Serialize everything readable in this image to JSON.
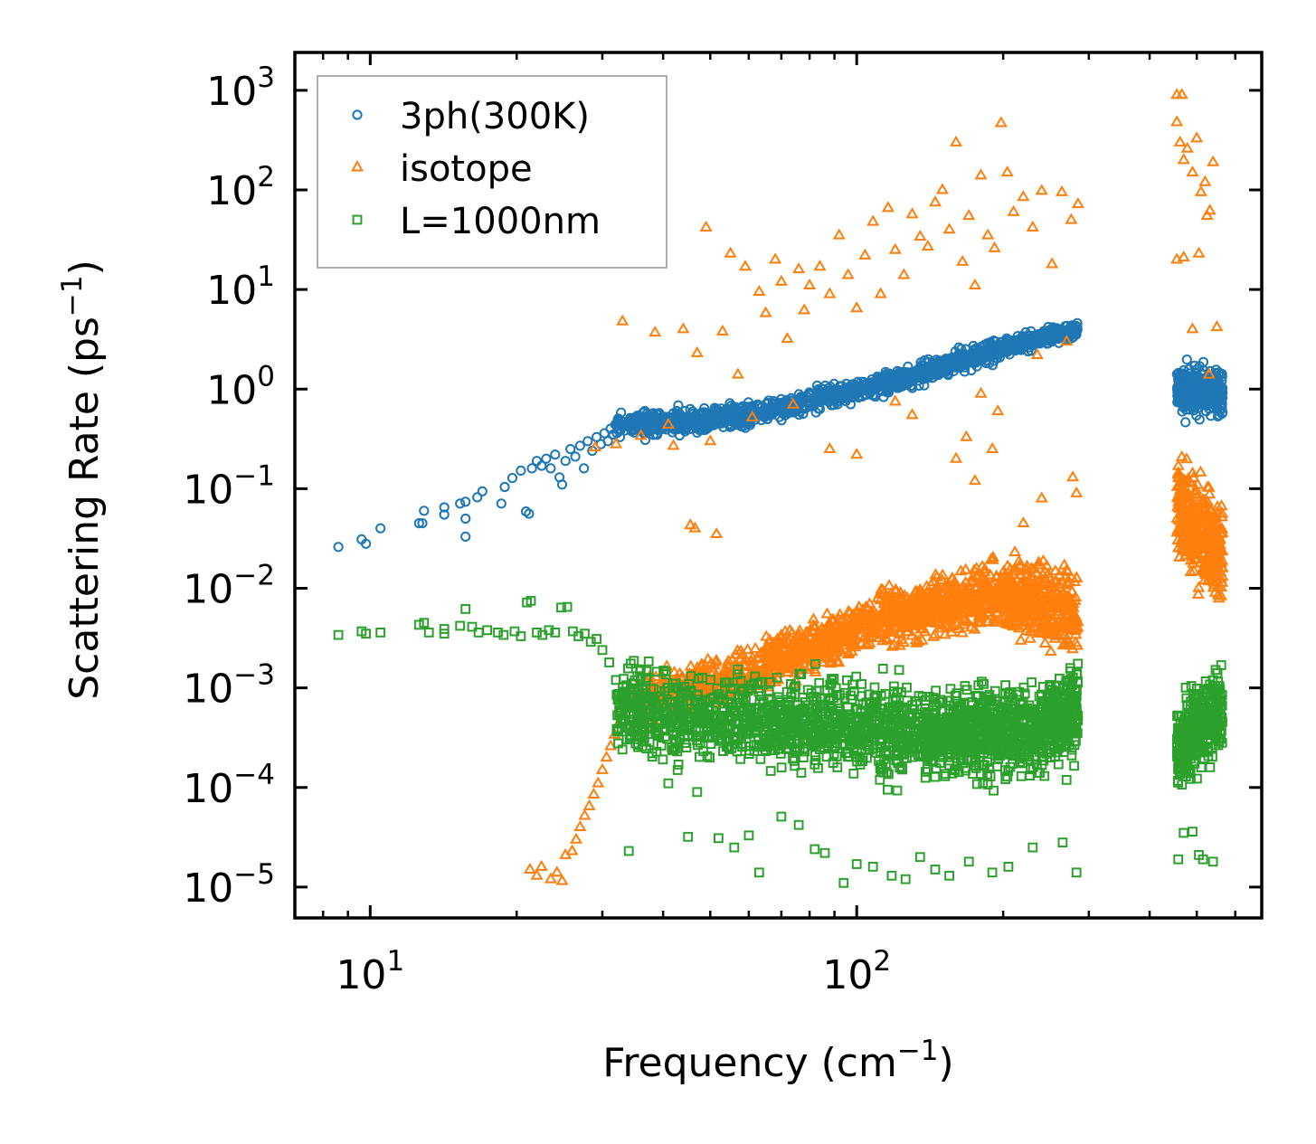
{
  "chart_data": {
    "type": "scatter",
    "title": "",
    "xlabel": "Frequency (cm^-1)",
    "xlabel_base": "Frequency (cm",
    "xlabel_sup": "−1",
    "xlabel_close": ")",
    "ylabel": "Scattering Rate (ps^-1)",
    "ylabel_base": "Scattering Rate (ps",
    "ylabel_sup": "−1",
    "ylabel_close": ")",
    "xscale": "log",
    "yscale": "log",
    "xlim": [
      7.0,
      680
    ],
    "ylim": [
      4.9e-06,
      2400
    ],
    "grid": false,
    "legend_position": "top-left",
    "x_ticks": [
      {
        "value": 10,
        "base": "10",
        "exp": "1"
      },
      {
        "value": 100,
        "base": "10",
        "exp": "2"
      }
    ],
    "y_ticks": [
      {
        "value": 1000,
        "base": "10",
        "exp": "3"
      },
      {
        "value": 100,
        "base": "10",
        "exp": "2"
      },
      {
        "value": 10,
        "base": "10",
        "exp": "1"
      },
      {
        "value": 1,
        "base": "10",
        "exp": "0"
      },
      {
        "value": 0.1,
        "base": "10",
        "exp": "−1"
      },
      {
        "value": 0.01,
        "base": "10",
        "exp": "−2"
      },
      {
        "value": 0.001,
        "base": "10",
        "exp": "−3"
      },
      {
        "value": 0.0001,
        "base": "10",
        "exp": "−4"
      },
      {
        "value": 1e-05,
        "base": "10",
        "exp": "−5"
      }
    ],
    "x_minor_ticks": [
      8,
      9,
      20,
      30,
      40,
      50,
      60,
      70,
      80,
      90,
      200,
      300,
      400,
      500,
      600
    ],
    "series": [
      {
        "name": "3ph(300K)",
        "marker": "circle",
        "color": "#1f77b4",
        "points": [
          [
            8.6,
            0.026
          ],
          [
            9.6,
            0.031
          ],
          [
            9.8,
            0.028
          ],
          [
            10.5,
            0.04
          ],
          [
            12.6,
            0.045
          ],
          [
            12.8,
            0.045
          ],
          [
            12.9,
            0.06
          ],
          [
            14.2,
            0.055
          ],
          [
            14.2,
            0.065
          ],
          [
            15.3,
            0.071
          ],
          [
            15.7,
            0.074
          ],
          [
            15.7,
            0.05
          ],
          [
            15.7,
            0.033
          ],
          [
            16.6,
            0.082
          ],
          [
            17.0,
            0.094
          ],
          [
            18.6,
            0.071
          ],
          [
            18.9,
            0.104
          ],
          [
            19.6,
            0.128
          ],
          [
            20.4,
            0.152
          ],
          [
            20.9,
            0.059
          ],
          [
            21.2,
            0.056
          ],
          [
            21.5,
            0.16
          ],
          [
            22.0,
            0.19
          ],
          [
            22.5,
            0.17
          ],
          [
            23.0,
            0.2
          ],
          [
            23.5,
            0.16
          ],
          [
            24.0,
            0.22
          ],
          [
            24.5,
            0.13
          ],
          [
            24.8,
            0.11
          ],
          [
            25.2,
            0.19
          ],
          [
            25.8,
            0.25
          ],
          [
            26.4,
            0.21
          ],
          [
            27.0,
            0.27
          ],
          [
            27.5,
            0.16
          ],
          [
            28.0,
            0.3
          ],
          [
            28.6,
            0.24
          ],
          [
            29.2,
            0.33
          ],
          [
            29.8,
            0.28
          ],
          [
            30.3,
            0.36
          ],
          [
            30.8,
            0.3
          ],
          [
            31.2,
            0.4
          ],
          [
            31.6,
            0.35
          ],
          [
            31.9,
            0.44
          ],
          [
            32.3,
            0.39
          ]
        ],
        "bands": [
          {
            "x": [
              32,
              60
            ],
            "y": [
              0.42,
              0.55
            ],
            "spread_dex": 0.12,
            "count": 420
          },
          {
            "x": [
              60,
              120
            ],
            "y": [
              0.55,
              1.2
            ],
            "spread_dex": 0.1,
            "count": 420
          },
          {
            "x": [
              120,
              200
            ],
            "y": [
              1.2,
              2.6
            ],
            "spread_dex": 0.1,
            "count": 380
          },
          {
            "x": [
              200,
              285
            ],
            "y": [
              2.6,
              4.0
            ],
            "spread_dex": 0.07,
            "count": 300
          },
          {
            "x": [
              455,
              565
            ],
            "y": [
              1.0,
              0.9
            ],
            "spread_dex": 0.22,
            "count": 320
          }
        ]
      },
      {
        "name": "isotope",
        "marker": "triangle",
        "color": "#ff7f0e",
        "points": [
          [
            21.3,
            1.5e-05
          ],
          [
            22.0,
            1.3e-05
          ],
          [
            22.5,
            1.6e-05
          ],
          [
            23.5,
            1.2e-05
          ],
          [
            24.2,
            1.4e-05
          ],
          [
            24.8,
            1.15e-05
          ],
          [
            25.2,
            2.1e-05
          ],
          [
            26.0,
            2.3e-05
          ],
          [
            26.5,
            3e-05
          ],
          [
            27.0,
            4e-05
          ],
          [
            27.6,
            5.2e-05
          ],
          [
            28.2,
            6.5e-05
          ],
          [
            28.8,
            8.5e-05
          ],
          [
            29.4,
            0.00011
          ],
          [
            30.0,
            0.00015
          ],
          [
            30.6,
            0.0002
          ],
          [
            31.2,
            0.00026
          ],
          [
            31.8,
            0.00034
          ],
          [
            32.4,
            0.00044
          ],
          [
            33.0,
            0.00056
          ],
          [
            33.5,
            0.00075
          ],
          [
            34.0,
            0.001
          ],
          [
            29.0,
            0.26
          ],
          [
            32.0,
            0.28
          ],
          [
            33.0,
            4.8
          ],
          [
            36.0,
            0.34
          ],
          [
            38.5,
            3.7
          ],
          [
            41.0,
            0.44
          ],
          [
            42.0,
            0.27
          ],
          [
            44.0,
            4.0
          ],
          [
            45.5,
            0.043
          ],
          [
            46.5,
            0.04
          ],
          [
            47.0,
            2.3
          ],
          [
            49.0,
            42
          ],
          [
            50.0,
            0.3
          ],
          [
            51.5,
            0.035
          ],
          [
            53.0,
            3.8
          ],
          [
            55.0,
            23
          ],
          [
            57.0,
            1.4
          ],
          [
            59.0,
            17
          ],
          [
            61.0,
            0.52
          ],
          [
            63.0,
            9.5
          ],
          [
            65.0,
            5.8
          ],
          [
            68.0,
            20
          ],
          [
            70.0,
            12
          ],
          [
            72.0,
            3.2
          ],
          [
            74.0,
            0.7
          ],
          [
            76.0,
            16
          ],
          [
            78.0,
            6.2
          ],
          [
            80.0,
            11
          ],
          [
            84.0,
            17
          ],
          [
            88.0,
            9
          ],
          [
            92.0,
            35
          ],
          [
            96.0,
            14
          ],
          [
            100.0,
            6.5
          ],
          [
            104.0,
            22
          ],
          [
            108.0,
            48
          ],
          [
            112.0,
            9
          ],
          [
            116.0,
            66
          ],
          [
            120.0,
            25
          ],
          [
            125.0,
            14
          ],
          [
            130.0,
            57
          ],
          [
            135.0,
            34
          ],
          [
            140.0,
            27
          ],
          [
            145.0,
            75
          ],
          [
            150.0,
            100
          ],
          [
            155.0,
            40
          ],
          [
            160.0,
            300
          ],
          [
            165.0,
            19
          ],
          [
            170.0,
            55
          ],
          [
            175.0,
            11
          ],
          [
            180.0,
            140
          ],
          [
            186.0,
            35
          ],
          [
            192.0,
            26
          ],
          [
            198.0,
            470
          ],
          [
            204.0,
            150
          ],
          [
            210.0,
            60
          ],
          [
            220.0,
            85
          ],
          [
            230.0,
            42
          ],
          [
            240.0,
            98
          ],
          [
            252.0,
            18
          ],
          [
            264.0,
            95
          ],
          [
            276.0,
            50
          ],
          [
            285.0,
            72
          ],
          [
            120.0,
            0.75
          ],
          [
            130.0,
            0.55
          ],
          [
            180.0,
            0.9
          ],
          [
            195.0,
            0.6
          ],
          [
            235.0,
            2.2
          ],
          [
            270.0,
            3.0
          ],
          [
            88.0,
            0.25
          ],
          [
            100.0,
            0.22
          ],
          [
            160.0,
            0.2
          ],
          [
            175.0,
            0.12
          ],
          [
            168.0,
            0.33
          ],
          [
            190.0,
            0.25
          ],
          [
            220.0,
            0.045
          ],
          [
            240.0,
            0.08
          ],
          [
            278.0,
            0.13
          ],
          [
            283.0,
            0.09
          ],
          [
            455.0,
            900
          ],
          [
            466.0,
            900
          ],
          [
            455.0,
            480
          ],
          [
            462.0,
            300
          ],
          [
            470.0,
            200
          ],
          [
            478.0,
            260
          ],
          [
            490.0,
            150
          ],
          [
            500.0,
            330
          ],
          [
            510.0,
            95
          ],
          [
            520.0,
            120
          ],
          [
            532.0,
            62
          ],
          [
            540.0,
            190
          ],
          [
            455.0,
            20
          ],
          [
            470.0,
            21
          ],
          [
            505.0,
            23
          ],
          [
            525.0,
            55
          ],
          [
            550.0,
            4.2
          ],
          [
            490.0,
            4.0
          ],
          [
            530.0,
            1.4
          ]
        ],
        "bands": [
          {
            "x": [
              34,
              65
            ],
            "y": [
              0.0007,
              0.0016
            ],
            "spread_dex": 0.22,
            "count": 300
          },
          {
            "x": [
              65,
              110
            ],
            "y": [
              0.0018,
              0.0045
            ],
            "spread_dex": 0.22,
            "count": 380
          },
          {
            "x": [
              110,
              200
            ],
            "y": [
              0.005,
              0.009
            ],
            "spread_dex": 0.28,
            "count": 520
          },
          {
            "x": [
              200,
              285
            ],
            "y": [
              0.008,
              0.006
            ],
            "spread_dex": 0.35,
            "count": 420
          },
          {
            "x": [
              455,
              565
            ],
            "y": [
              0.07,
              0.02
            ],
            "spread_dex": 0.45,
            "count": 380
          }
        ]
      },
      {
        "name": "L=1000nm",
        "marker": "square",
        "color": "#2ca02c",
        "points": [
          [
            8.6,
            0.0034
          ],
          [
            9.6,
            0.0037
          ],
          [
            9.8,
            0.0035
          ],
          [
            10.5,
            0.0036
          ],
          [
            12.6,
            0.0043
          ],
          [
            12.9,
            0.0045
          ],
          [
            13.2,
            0.0036
          ],
          [
            14.2,
            0.0039
          ],
          [
            14.2,
            0.0035
          ],
          [
            15.3,
            0.0042
          ],
          [
            15.7,
            0.0062
          ],
          [
            16.2,
            0.0041
          ],
          [
            16.7,
            0.0036
          ],
          [
            17.4,
            0.0038
          ],
          [
            18.3,
            0.0036
          ],
          [
            18.8,
            0.0034
          ],
          [
            19.8,
            0.0037
          ],
          [
            20.4,
            0.0033
          ],
          [
            21.0,
            0.0072
          ],
          [
            21.4,
            0.0075
          ],
          [
            22.0,
            0.0036
          ],
          [
            22.6,
            0.0034
          ],
          [
            23.3,
            0.0038
          ],
          [
            24.0,
            0.0036
          ],
          [
            24.7,
            0.0064
          ],
          [
            25.4,
            0.0065
          ],
          [
            26.1,
            0.0037
          ],
          [
            26.8,
            0.0033
          ],
          [
            27.6,
            0.0035
          ],
          [
            28.4,
            0.0029
          ],
          [
            29.2,
            0.0031
          ],
          [
            30.0,
            0.0024
          ],
          [
            31.0,
            0.0018
          ],
          [
            32.0,
            0.0012
          ],
          [
            34.0,
            2.3e-05
          ],
          [
            38.0,
            0.00022
          ],
          [
            41.0,
            0.00011
          ],
          [
            43.0,
            0.00017
          ],
          [
            45.0,
            3.2e-05
          ],
          [
            47.0,
            9e-05
          ],
          [
            52.0,
            3.1e-05
          ],
          [
            56.0,
            2.5e-05
          ],
          [
            60.0,
            3.3e-05
          ],
          [
            63.0,
            1.4e-05
          ],
          [
            70.0,
            5.1e-05
          ],
          [
            76.0,
            4.2e-05
          ],
          [
            82.0,
            2.4e-05
          ],
          [
            86.0,
            2.2e-05
          ],
          [
            94.0,
            1.1e-05
          ],
          [
            100.0,
            1.7e-05
          ],
          [
            108.0,
            1.6e-05
          ],
          [
            118.0,
            1.3e-05
          ],
          [
            126.0,
            1.2e-05
          ],
          [
            135.0,
            2e-05
          ],
          [
            145.0,
            1.5e-05
          ],
          [
            155.0,
            1.3e-05
          ],
          [
            170.0,
            1.8e-05
          ],
          [
            190.0,
            1.4e-05
          ],
          [
            205.0,
            1.6e-05
          ],
          [
            230.0,
            2.5e-05
          ],
          [
            265.0,
            2.8e-05
          ],
          [
            283.0,
            1.4e-05
          ],
          [
            458.0,
            1.9e-05
          ],
          [
            470.0,
            3.5e-05
          ],
          [
            490.0,
            3.6e-05
          ],
          [
            505.0,
            2.1e-05
          ],
          [
            515.0,
            1.9e-05
          ],
          [
            540.0,
            1.8e-05
          ]
        ],
        "bands": [
          {
            "x": [
              32,
              65
            ],
            "y": [
              0.0006,
              0.00045
            ],
            "spread_dex": 0.38,
            "count": 520
          },
          {
            "x": [
              65,
              140
            ],
            "y": [
              0.00045,
              0.00035
            ],
            "spread_dex": 0.42,
            "count": 640
          },
          {
            "x": [
              140,
              240
            ],
            "y": [
              0.00035,
              0.0004
            ],
            "spread_dex": 0.42,
            "count": 640
          },
          {
            "x": [
              240,
              285
            ],
            "y": [
              0.0004,
              0.0006
            ],
            "spread_dex": 0.4,
            "count": 280
          },
          {
            "x": [
              455,
              565
            ],
            "y": [
              0.00025,
              0.0006
            ],
            "spread_dex": 0.4,
            "count": 380
          }
        ]
      }
    ]
  }
}
